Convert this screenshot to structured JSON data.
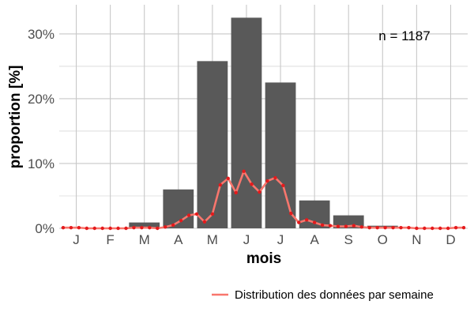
{
  "chart_data": {
    "type": "bar",
    "title": "",
    "xlabel": "mois",
    "ylabel": "proportion [%]",
    "categories": [
      "J",
      "F",
      "M",
      "A",
      "M",
      "J",
      "J",
      "A",
      "S",
      "O",
      "N",
      "D"
    ],
    "y_ticks": [
      0,
      10,
      20,
      30
    ],
    "y_tick_labels": [
      "0%",
      "10%",
      "20%",
      "30%"
    ],
    "ylim": [
      0,
      34.5
    ],
    "grid": true,
    "annotation": "n = 1187",
    "series": [
      {
        "type": "bar",
        "values": [
          0.1,
          0.0,
          0.9,
          6.0,
          25.8,
          32.5,
          22.5,
          4.3,
          2.0,
          0.4,
          0.1,
          0.0
        ]
      },
      {
        "type": "line",
        "name": "Distribution des données par semaine",
        "x": [
          1,
          2,
          3,
          4,
          5,
          6,
          7,
          8,
          9,
          10,
          11,
          12,
          13,
          14,
          15,
          16,
          17,
          18,
          19,
          20,
          21,
          22,
          23,
          24,
          25,
          26,
          27,
          28,
          29,
          30,
          31,
          32,
          33,
          34,
          35,
          36,
          37,
          38,
          39,
          40,
          41,
          42,
          43,
          44,
          45,
          46,
          47,
          48,
          49,
          50,
          51,
          52
        ],
        "values": [
          0.1,
          0.1,
          0.1,
          0.0,
          0.0,
          0.0,
          0.0,
          0.0,
          0.0,
          0.1,
          0.1,
          0.1,
          0.0,
          0.2,
          0.5,
          1.2,
          2.0,
          2.2,
          1.0,
          2.2,
          6.7,
          7.7,
          5.5,
          8.8,
          6.8,
          5.6,
          7.3,
          7.8,
          6.6,
          2.3,
          0.9,
          1.3,
          0.9,
          0.5,
          0.4,
          0.3,
          0.3,
          0.4,
          0.2,
          0.1,
          0.1,
          0.1,
          0.1,
          0.1,
          0.1,
          0.0,
          0.0,
          0.0,
          0.0,
          0.0,
          0.1,
          0.1
        ]
      }
    ],
    "legend_position": "bottom-right",
    "colors": {
      "bar": "#595959",
      "line": "#f8766d",
      "point": "#e41a1c",
      "grid": "#c8c8c8"
    }
  }
}
